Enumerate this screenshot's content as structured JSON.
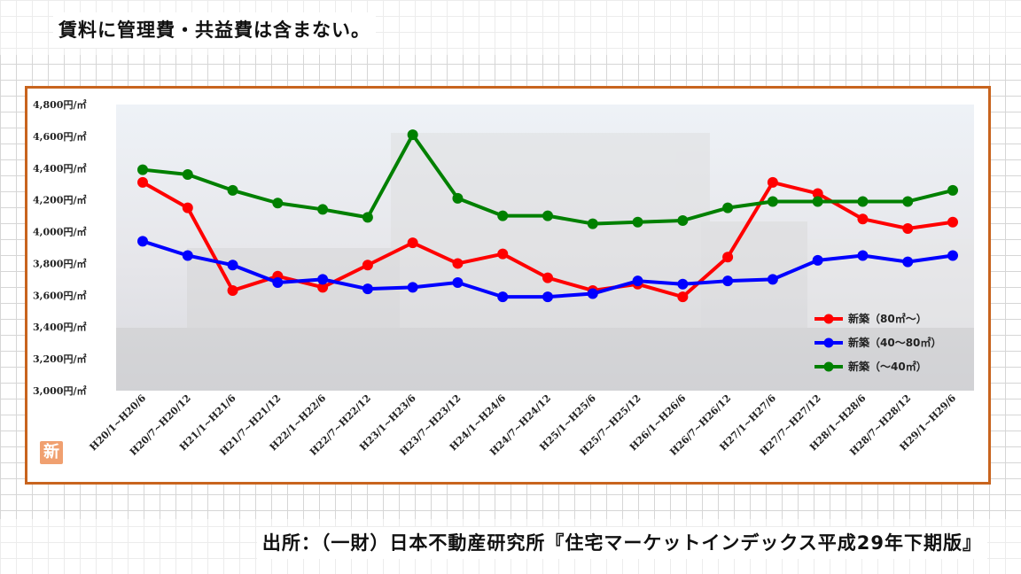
{
  "header": {
    "note": "賃料に管理費・共益費は含まない。"
  },
  "footer": {
    "source": "出所：（一財）日本不動産研究所『住宅マーケットインデックス平成29年下期版』"
  },
  "badge": {
    "text": "新"
  },
  "chart_data": {
    "type": "line",
    "categories": [
      "H20/1~H20/6",
      "H20/7~H20/12",
      "H21/1~H21/6",
      "H21/7~H21/12",
      "H22/1~H22/6",
      "H22/7~H22/12",
      "H23/1~H23/6",
      "H23/7~H23/12",
      "H24/1~H24/6",
      "H24/7~H24/12",
      "H25/1~H25/6",
      "H25/7~H25/12",
      "H26/1~H26/6",
      "H26/7~H26/12",
      "H27/1~H27/6",
      "H27/7~H27/12",
      "H28/1~H28/6",
      "H28/7~H28/12",
      "H29/1~H29/6"
    ],
    "series": [
      {
        "name": "新築（80㎡～）",
        "color": "#ff0000",
        "values": [
          4310,
          4150,
          3630,
          3720,
          3650,
          3790,
          3930,
          3800,
          3860,
          3710,
          3630,
          3670,
          3590,
          3840,
          4310,
          4240,
          4080,
          4020,
          4060
        ]
      },
      {
        "name": "新築（40～80㎡）",
        "color": "#0000ff",
        "values": [
          3940,
          3850,
          3790,
          3680,
          3700,
          3640,
          3650,
          3680,
          3590,
          3590,
          3610,
          3690,
          3670,
          3690,
          3700,
          3820,
          3850,
          3810,
          3850
        ]
      },
      {
        "name": "新築（～40㎡）",
        "color": "#008000",
        "values": [
          4390,
          4360,
          4260,
          4180,
          4140,
          4090,
          4610,
          4210,
          4100,
          4100,
          4050,
          4060,
          4070,
          4150,
          4190,
          4190,
          4190,
          4190,
          4260
        ]
      }
    ],
    "yticks": [
      "3,000円/㎡",
      "3,200円/㎡",
      "3,400円/㎡",
      "3,600円/㎡",
      "3,800円/㎡",
      "4,000円/㎡",
      "4,200円/㎡",
      "4,400円/㎡",
      "4,600円/㎡",
      "4,800円/㎡"
    ],
    "ylim": [
      3000,
      4800
    ],
    "legend_position": "bottom-right",
    "grid": false,
    "title": "",
    "xlabel": "",
    "ylabel": ""
  }
}
